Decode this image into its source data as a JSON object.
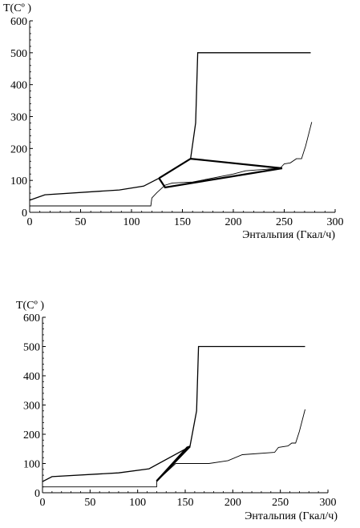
{
  "chart_data": [
    {
      "type": "line",
      "y_axis_title": "T(Cº )",
      "x_axis_title": "Энтальпия (Гкал/ч)",
      "xlim": [
        0,
        300
      ],
      "ylim": [
        0,
        600
      ],
      "x_ticks": [
        0,
        50,
        100,
        150,
        200,
        250,
        300
      ],
      "y_ticks": [
        0,
        100,
        200,
        300,
        400,
        500,
        600
      ],
      "grid": false,
      "series": [
        {
          "role": "hot-composite",
          "color": "#000000",
          "stroke": "medium",
          "points": [
            [
              0,
              38
            ],
            [
              15,
              55
            ],
            [
              88,
              70
            ],
            [
              112,
              82
            ],
            [
              127,
              107
            ],
            [
              158,
              168
            ],
            [
              163,
              280
            ],
            [
              165,
              500
            ],
            [
              276,
              500
            ]
          ]
        },
        {
          "role": "cold-composite",
          "color": "#000000",
          "stroke": "thin",
          "points": [
            [
              0,
              20
            ],
            [
              119,
              20
            ],
            [
              120,
              45
            ],
            [
              125,
              62
            ],
            [
              133,
              85
            ],
            [
              140,
              92
            ],
            [
              160,
              95
            ],
            [
              200,
              120
            ],
            [
              212,
              130
            ],
            [
              246,
              138
            ],
            [
              250,
              152
            ],
            [
              256,
              155
            ],
            [
              262,
              168
            ],
            [
              267,
              168
            ],
            [
              271,
              208
            ],
            [
              277,
              283
            ]
          ]
        },
        {
          "role": "heat-exchange-link",
          "color": "#000000",
          "stroke": "thick",
          "points": [
            [
              127,
              107
            ],
            [
              158,
              168
            ],
            [
              248,
              138
            ]
          ]
        },
        {
          "role": "heat-exchange-link",
          "color": "#000000",
          "stroke": "thick",
          "points": [
            [
              127,
              107
            ],
            [
              133,
              78
            ],
            [
              248,
              138
            ]
          ]
        }
      ]
    },
    {
      "type": "line",
      "y_axis_title": "T(Cº )",
      "x_axis_title": "Энтальпия (Гкал/ч)",
      "xlim": [
        0,
        300
      ],
      "ylim": [
        0,
        600
      ],
      "x_ticks": [
        0,
        50,
        100,
        150,
        200,
        250,
        300
      ],
      "y_ticks": [
        0,
        100,
        200,
        300,
        400,
        500,
        600
      ],
      "grid": false,
      "series": [
        {
          "role": "hot-composite",
          "color": "#000000",
          "stroke": "medium",
          "points": [
            [
              0,
              38
            ],
            [
              10,
              55
            ],
            [
              80,
              68
            ],
            [
              112,
              82
            ],
            [
              155,
              158
            ],
            [
              162,
              280
            ],
            [
              164,
              500
            ],
            [
              276,
              500
            ]
          ]
        },
        {
          "role": "cold-composite",
          "color": "#000000",
          "stroke": "thin",
          "points": [
            [
              0,
              20
            ],
            [
              120,
              20
            ],
            [
              120,
              40
            ],
            [
              140,
              100
            ],
            [
              175,
              100
            ],
            [
              195,
              110
            ],
            [
              210,
              130
            ],
            [
              244,
              138
            ],
            [
              248,
              155
            ],
            [
              258,
              160
            ],
            [
              262,
              170
            ],
            [
              266,
              170
            ],
            [
              270,
              210
            ],
            [
              276,
              285
            ]
          ]
        },
        {
          "role": "heat-exchange-link",
          "color": "#000000",
          "stroke": "thick",
          "points": [
            [
              120,
              40
            ],
            [
              155,
              158
            ]
          ]
        },
        {
          "role": "heat-exchange-link",
          "color": "#000000",
          "stroke": "thick",
          "points": [
            [
              120,
              40
            ],
            [
              152,
              155
            ],
            [
              155,
              158
            ]
          ]
        }
      ]
    }
  ]
}
